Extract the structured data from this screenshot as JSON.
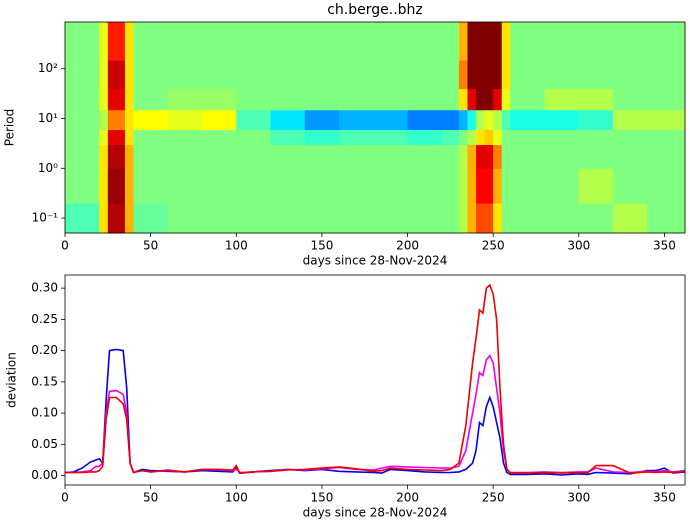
{
  "chart_data": [
    {
      "type": "heatmap",
      "title": "ch.berge..bhz",
      "xlabel": "days since 28-Nov-2024",
      "ylabel": "Period",
      "colormap": "jet",
      "log_y": true,
      "zlim": [
        -1,
        1
      ],
      "x_edges": [
        0,
        20,
        25,
        30,
        35,
        40,
        60,
        80,
        100,
        120,
        140,
        160,
        180,
        200,
        220,
        230,
        235,
        240,
        245,
        250,
        255,
        260,
        280,
        300,
        320,
        340,
        362
      ],
      "y_edges": [
        0.05,
        0.2,
        1,
        3,
        6,
        15,
        40,
        150,
        870
      ],
      "z": [
        [
          -0.1,
          0.3,
          0.9,
          0.9,
          0.4,
          -0.05,
          0,
          0,
          0,
          0,
          0,
          0,
          0,
          0,
          0,
          0.1,
          0.4,
          0.6,
          0.6,
          0.3,
          0,
          0,
          0,
          0,
          0.1,
          0
        ],
        [
          0,
          0.3,
          0.95,
          0.95,
          0.4,
          0,
          0,
          0,
          0,
          0,
          0,
          0,
          0,
          0,
          0,
          0.1,
          0.4,
          0.75,
          0.75,
          0.4,
          0,
          0,
          0,
          0.1,
          0,
          0
        ],
        [
          0,
          0.3,
          0.9,
          0.9,
          0.4,
          0,
          0,
          0,
          0,
          0,
          0,
          0,
          0,
          0,
          0,
          0.1,
          0.4,
          0.8,
          0.8,
          0.5,
          0,
          0,
          0,
          0,
          0,
          0
        ],
        [
          0,
          0.2,
          0.8,
          0.8,
          0.3,
          0,
          0,
          0,
          0,
          -0.1,
          -0.15,
          -0.1,
          -0.1,
          -0.15,
          -0.1,
          0,
          0.1,
          0.3,
          0.35,
          0.2,
          0,
          0,
          0,
          0,
          0,
          0
        ],
        [
          0,
          0.1,
          0.5,
          0.5,
          0.3,
          0.25,
          0.2,
          0.25,
          -0.1,
          -0.3,
          -0.45,
          -0.4,
          -0.4,
          -0.5,
          -0.5,
          -0.4,
          -0.2,
          0.1,
          0.2,
          0.1,
          -0.1,
          -0.2,
          -0.2,
          -0.15,
          0.1,
          0.1
        ],
        [
          0,
          0.2,
          0.8,
          0.8,
          0.3,
          0,
          0.05,
          0.05,
          0,
          0,
          0,
          0,
          0,
          0,
          0,
          0.3,
          0.8,
          1,
          1,
          0.8,
          0.2,
          0,
          0.1,
          0.1,
          0,
          0
        ],
        [
          0,
          0.2,
          0.85,
          0.85,
          0.3,
          0,
          0,
          0,
          0,
          0,
          0,
          0,
          0,
          0,
          0,
          0.5,
          1,
          1,
          1,
          1,
          0.3,
          0,
          0,
          0,
          0,
          0
        ],
        [
          0,
          0.2,
          0.7,
          0.7,
          0.3,
          0,
          0,
          0,
          0,
          0,
          0,
          0,
          0,
          0,
          0,
          0.4,
          1,
          1,
          1,
          1,
          0.3,
          0,
          0,
          0,
          0,
          0
        ]
      ],
      "xlim": [
        0,
        362
      ],
      "xticks": [
        0,
        50,
        100,
        150,
        200,
        250,
        300,
        350
      ],
      "ylim": [
        0.05,
        870
      ],
      "yticks": [
        {
          "value": 0.1,
          "label": "10⁻¹"
        },
        {
          "value": 1,
          "label": "10⁰"
        },
        {
          "value": 10,
          "label": "10¹"
        },
        {
          "value": 100,
          "label": "10²"
        }
      ]
    },
    {
      "type": "line",
      "xlabel": "days since 28-Nov-2024",
      "ylabel": "deviation",
      "x": [
        0,
        5,
        10,
        15,
        18,
        20,
        22,
        24,
        26,
        30,
        34,
        36,
        38,
        40,
        45,
        50,
        60,
        70,
        80,
        90,
        98,
        100,
        102,
        110,
        120,
        130,
        140,
        150,
        160,
        170,
        180,
        185,
        190,
        200,
        210,
        220,
        225,
        230,
        234,
        238,
        240,
        242,
        244,
        246,
        248,
        250,
        252,
        254,
        256,
        258,
        260,
        270,
        280,
        290,
        300,
        305,
        310,
        320,
        330,
        340,
        345,
        350,
        355,
        362
      ],
      "series": [
        {
          "color": "#0000ee",
          "values": [
            0.005,
            0.006,
            0.012,
            0.022,
            0.025,
            0.027,
            0.02,
            0.12,
            0.2,
            0.202,
            0.2,
            0.14,
            0.02,
            0.005,
            0.01,
            0.008,
            0.007,
            0.006,
            0.008,
            0.007,
            0.006,
            0.012,
            0.004,
            0.006,
            0.008,
            0.01,
            0.008,
            0.01,
            0.007,
            0.006,
            0.005,
            0.004,
            0.01,
            0.008,
            0.006,
            0.005,
            0.005,
            0.006,
            0.01,
            0.02,
            0.04,
            0.085,
            0.08,
            0.11,
            0.125,
            0.11,
            0.085,
            0.06,
            0.02,
            0.005,
            0.002,
            0.002,
            0.003,
            0.001,
            0.003,
            0.002,
            0.005,
            0.004,
            0.003,
            0.008,
            0.008,
            0.012,
            0.004,
            0.006
          ]
        },
        {
          "color": "#ee00ee",
          "values": [
            0.005,
            0.005,
            0.006,
            0.008,
            0.015,
            0.015,
            0.02,
            0.1,
            0.135,
            0.136,
            0.13,
            0.1,
            0.02,
            0.005,
            0.008,
            0.006,
            0.008,
            0.006,
            0.01,
            0.009,
            0.008,
            0.01,
            0.005,
            0.006,
            0.007,
            0.01,
            0.009,
            0.011,
            0.013,
            0.01,
            0.009,
            0.012,
            0.015,
            0.014,
            0.013,
            0.012,
            0.012,
            0.015,
            0.04,
            0.1,
            0.13,
            0.165,
            0.16,
            0.185,
            0.192,
            0.18,
            0.14,
            0.1,
            0.04,
            0.01,
            0.005,
            0.005,
            0.006,
            0.005,
            0.006,
            0.006,
            0.012,
            0.006,
            0.005,
            0.007,
            0.006,
            0.008,
            0.006,
            0.008
          ]
        },
        {
          "color": "#ee0000",
          "values": [
            0.005,
            0.005,
            0.005,
            0.006,
            0.006,
            0.008,
            0.015,
            0.09,
            0.125,
            0.125,
            0.115,
            0.09,
            0.02,
            0.005,
            0.008,
            0.006,
            0.009,
            0.006,
            0.01,
            0.01,
            0.009,
            0.016,
            0.004,
            0.006,
            0.007,
            0.009,
            0.01,
            0.012,
            0.014,
            0.011,
            0.007,
            0.008,
            0.012,
            0.01,
            0.009,
            0.008,
            0.01,
            0.02,
            0.08,
            0.18,
            0.22,
            0.265,
            0.26,
            0.3,
            0.305,
            0.29,
            0.25,
            0.14,
            0.05,
            0.01,
            0.004,
            0.004,
            0.005,
            0.004,
            0.005,
            0.004,
            0.016,
            0.016,
            0.004,
            0.006,
            0.005,
            0.006,
            0.005,
            0.007
          ]
        }
      ],
      "xlim": [
        0,
        362
      ],
      "xticks": [
        0,
        50,
        100,
        150,
        200,
        250,
        300,
        350
      ],
      "ylim": [
        -0.015,
        0.321
      ],
      "yticks": [
        {
          "value": 0,
          "label": "0.00"
        },
        {
          "value": 0.05,
          "label": "0.05"
        },
        {
          "value": 0.1,
          "label": "0.10"
        },
        {
          "value": 0.15,
          "label": "0.15"
        },
        {
          "value": 0.2,
          "label": "0.20"
        },
        {
          "value": 0.25,
          "label": "0.25"
        },
        {
          "value": 0.3,
          "label": "0.30"
        }
      ]
    }
  ]
}
